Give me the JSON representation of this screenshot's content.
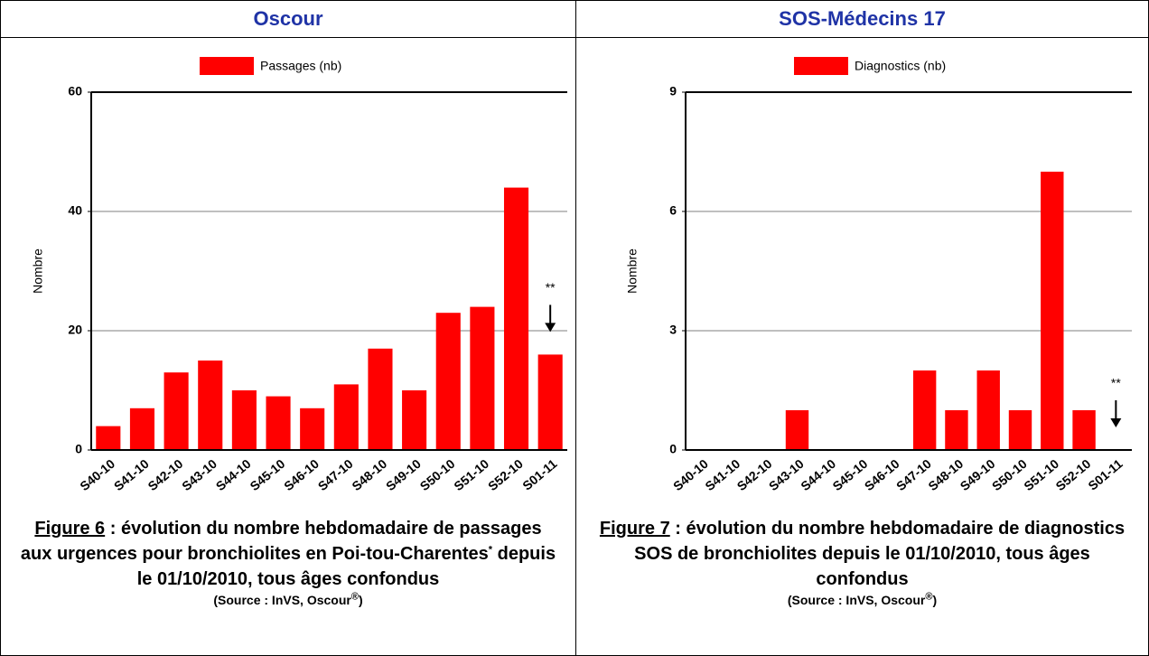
{
  "chart_data": [
    {
      "type": "bar",
      "header": "Oscour",
      "ylabel": "Nombre",
      "categories": [
        "S40-10",
        "S41-10",
        "S42-10",
        "S43-10",
        "S44-10",
        "S45-10",
        "S46-10",
        "S47-10",
        "S48-10",
        "S49-10",
        "S50-10",
        "S51-10",
        "S52-10",
        "S01-11"
      ],
      "series": [
        {
          "name": "Passages (nb)",
          "color": "#ff0000",
          "values": [
            4,
            7,
            13,
            15,
            10,
            9,
            7,
            11,
            17,
            10,
            23,
            24,
            44,
            16
          ]
        }
      ],
      "ylim": [
        0,
        60
      ],
      "yticks": [
        0,
        20,
        40,
        60
      ],
      "grid": true,
      "annotation": "**",
      "caption_label": "Figure 6",
      "caption": " : évolution du nombre hebdomadaire de passages aux urgences pour bronchiolites en Poi-tou-Charentes",
      "caption_mark": "*",
      "caption_rest": " depuis le 01/10/2010, tous âges confondus",
      "source": "(Source : InVS, Oscour",
      "source_mark": "®",
      "source_end": ")"
    },
    {
      "type": "bar",
      "header": "SOS-Médecins 17",
      "ylabel": "Nombre",
      "categories": [
        "S40-10",
        "S41-10",
        "S42-10",
        "S43-10",
        "S44-10",
        "S45-10",
        "S46-10",
        "S47-10",
        "S48-10",
        "S49-10",
        "S50-10",
        "S51-10",
        "S52-10",
        "S01-11"
      ],
      "series": [
        {
          "name": "Diagnostics (nb)",
          "color": "#ff0000",
          "values": [
            0,
            0,
            0,
            1,
            0,
            0,
            0,
            2,
            1,
            2,
            1,
            7,
            1,
            0
          ]
        }
      ],
      "ylim": [
        0,
        9
      ],
      "yticks": [
        0,
        3,
        6,
        9
      ],
      "grid": true,
      "annotation": "**",
      "caption_label": "Figure 7",
      "caption": " : évolution du nombre hebdomadaire de diagnostics SOS de bronchiolites depuis le 01/10/2010, tous âges confondus",
      "caption_mark": "",
      "caption_rest": "",
      "source": "(Source : InVS, Oscour",
      "source_mark": "®",
      "source_end": ")"
    }
  ]
}
